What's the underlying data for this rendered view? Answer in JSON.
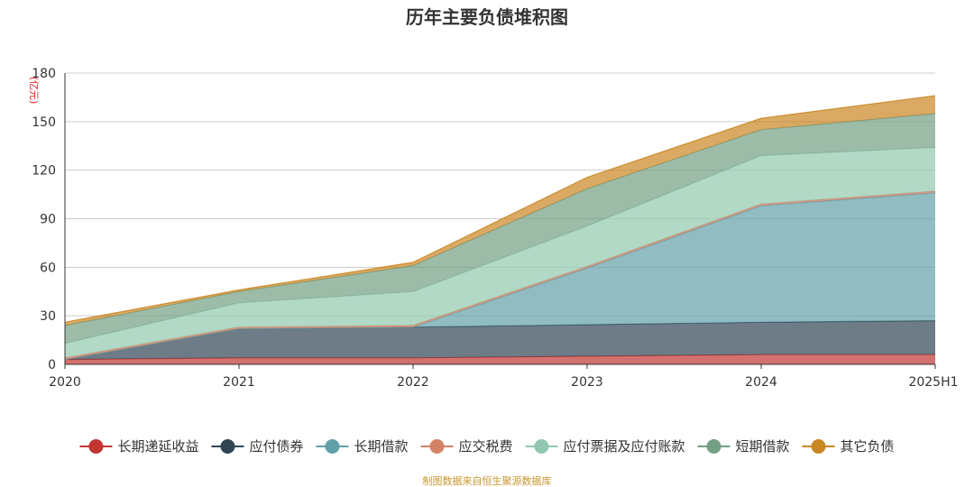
{
  "chart_data": {
    "type": "area",
    "title": "历年主要负债堆积图",
    "unit_label": "(亿元)",
    "categories": [
      "2020",
      "2021",
      "2022",
      "2023",
      "2024",
      "2025H1"
    ],
    "ylim": [
      0,
      180
    ],
    "yticks": [
      0,
      30,
      60,
      90,
      120,
      150,
      180
    ],
    "grid": true,
    "legend_position": "bottom",
    "stacked": true,
    "series": [
      {
        "name": "长期递延收益",
        "color": "#c23531",
        "values": [
          3,
          4,
          4,
          5,
          6,
          6
        ]
      },
      {
        "name": "应付债券",
        "color": "#2f4554",
        "values": [
          0,
          18,
          19,
          19.5,
          20,
          21
        ]
      },
      {
        "name": "长期借款",
        "color": "#61a0a8",
        "values": [
          0,
          0,
          0,
          35,
          72,
          79
        ]
      },
      {
        "name": "应交税费",
        "color": "#d48265",
        "values": [
          1,
          1,
          1,
          1,
          1,
          1
        ]
      },
      {
        "name": "应付票据及应付账款",
        "color": "#91c7ae",
        "values": [
          9,
          15,
          21,
          25,
          30,
          27
        ]
      },
      {
        "name": "短期借款",
        "color": "#749f83",
        "values": [
          11,
          7,
          16,
          23,
          16,
          21
        ]
      },
      {
        "name": "其它负债",
        "color": "#ca8622",
        "values": [
          2,
          1,
          2,
          7,
          7,
          11
        ]
      }
    ],
    "source_note": "制图数据来自恒生聚源数据库"
  }
}
